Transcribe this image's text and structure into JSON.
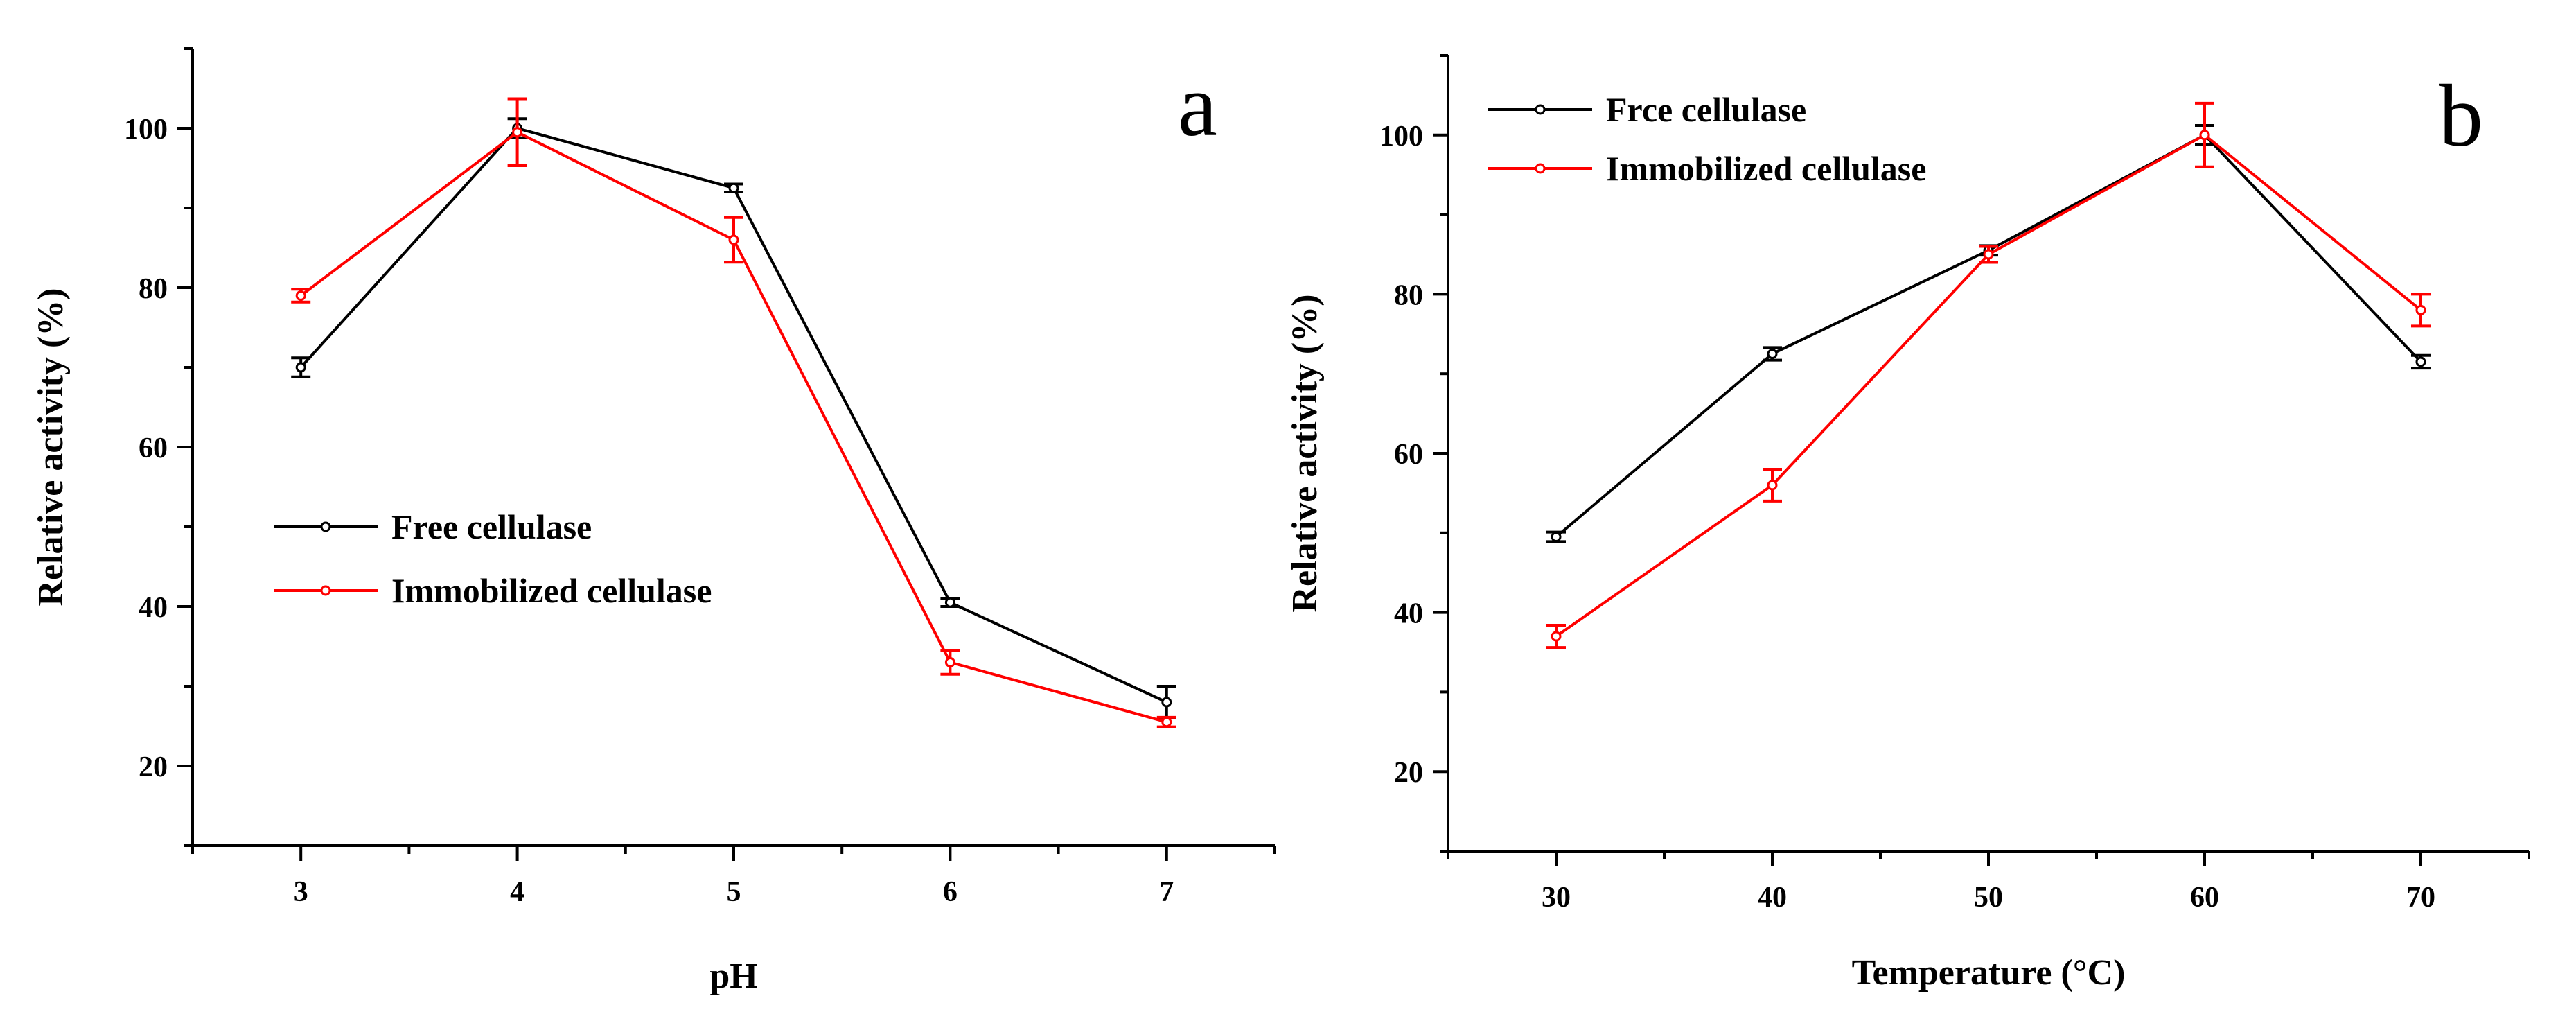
{
  "chart_data": [
    {
      "type": "line",
      "panel_label": "a",
      "xlabel": "pH",
      "ylabel": "Relative activity (%)",
      "x": [
        3,
        4,
        5,
        6,
        7
      ],
      "xlim": [
        2.5,
        7.5
      ],
      "ylim": [
        10,
        110
      ],
      "xticks": [
        3,
        4,
        5,
        6,
        7
      ],
      "yticks": [
        20,
        40,
        60,
        80,
        100
      ],
      "legend_position": "middle-left",
      "series": [
        {
          "name": "Free cellulase",
          "color": "#000000",
          "values": [
            70,
            100,
            92.5,
            40.5,
            28
          ],
          "errors": [
            1.2,
            1.2,
            0.5,
            0.5,
            2
          ]
        },
        {
          "name": "Immobilized cellulase",
          "color": "#ff0000",
          "values": [
            79,
            99.5,
            86,
            33,
            25.5
          ],
          "errors": [
            0.8,
            4.2,
            2.8,
            1.5,
            0.6
          ]
        }
      ]
    },
    {
      "type": "line",
      "panel_label": "b",
      "xlabel": "Temperature (°C)",
      "ylabel": "Relative activity (%)",
      "x": [
        30,
        40,
        50,
        60,
        70
      ],
      "xlim": [
        25,
        75
      ],
      "ylim": [
        10,
        110
      ],
      "xticks": [
        30,
        40,
        50,
        60,
        70
      ],
      "yticks": [
        20,
        40,
        60,
        80,
        100
      ],
      "legend_position": "top-left",
      "series": [
        {
          "name": "Frce cellulase",
          "color": "#000000",
          "values": [
            49.5,
            72.5,
            85.5,
            100,
            71.5
          ],
          "errors": [
            0.6,
            0.8,
            0.6,
            1.2,
            0.8
          ]
        },
        {
          "name": "Immobilized cellulase",
          "color": "#ff0000",
          "values": [
            37,
            56,
            85,
            100,
            78
          ],
          "errors": [
            1.4,
            2,
            1,
            4,
            2
          ]
        }
      ]
    }
  ]
}
